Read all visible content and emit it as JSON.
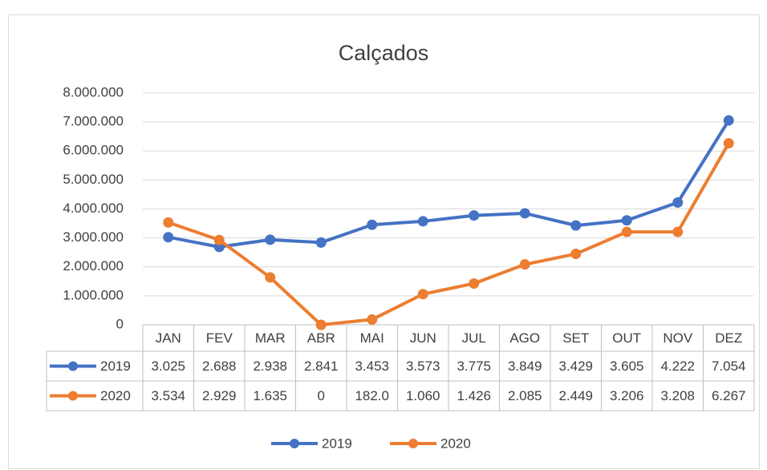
{
  "chart_data": {
    "type": "line",
    "title": "Calçados",
    "categories": [
      "JAN",
      "FEV",
      "MAR",
      "ABR",
      "MAI",
      "JUN",
      "JUL",
      "AGO",
      "SET",
      "OUT",
      "NOV",
      "DEZ"
    ],
    "series": [
      {
        "name": "2019",
        "color": "#4472c4",
        "values": [
          3025000,
          2688000,
          2938000,
          2841000,
          3453000,
          3573000,
          3775000,
          3849000,
          3429000,
          3605000,
          4222000,
          7054000
        ],
        "value_labels": [
          "3.025",
          "2.688",
          "2.938",
          "2.841",
          "3.453",
          "3.573",
          "3.775",
          "3.849",
          "3.429",
          "3.605",
          "4.222",
          "7.054"
        ]
      },
      {
        "name": "2020",
        "color": "#ed7d31",
        "values": [
          3534000,
          2929000,
          1635000,
          0,
          182000,
          1060000,
          1426000,
          2085000,
          2449000,
          3206000,
          3208000,
          6267000
        ],
        "value_labels": [
          "3.534",
          "2.929",
          "1.635",
          "0",
          "182.0",
          "1.060",
          "1.426",
          "2.085",
          "2.449",
          "3.206",
          "3.208",
          "6.267"
        ]
      }
    ],
    "ylim": [
      0,
      8000000
    ],
    "yticks": [
      0,
      {
        "value": 1000000,
        "label": "1.000.000"
      },
      {
        "value": 2000000,
        "label": "2.000.000"
      },
      {
        "value": 3000000,
        "label": "3.000.000"
      },
      {
        "value": 4000000,
        "label": "4.000.000"
      },
      {
        "value": 5000000,
        "label": "5.000.000"
      },
      {
        "value": 6000000,
        "label": "6.000.000"
      },
      {
        "value": 7000000,
        "label": "7.000.000"
      },
      {
        "value": 8000000,
        "label": "8.000.000"
      }
    ],
    "grid": true,
    "legend": "bottom",
    "data_table": true
  }
}
